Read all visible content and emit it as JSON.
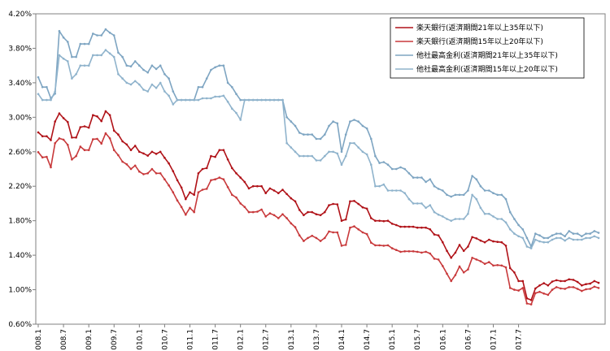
{
  "chart_data": {
    "type": "line",
    "title": "",
    "xlabel": "",
    "ylabel": "",
    "ylim": [
      0.6,
      4.2
    ],
    "yticks": [
      "0.60%",
      "1.00%",
      "1.40%",
      "1.80%",
      "2.20%",
      "2.60%",
      "3.00%",
      "3.40%",
      "3.80%",
      "4.20%"
    ],
    "xticks": [
      "008.1",
      "008.7",
      "009.1",
      "009.7",
      "010.1",
      "010.7",
      "011.1",
      "011.7",
      "012.1",
      "012.7",
      "013.1",
      "013.7",
      "014.1",
      "014.7",
      "015.1",
      "015.7",
      "016.1",
      "016.7",
      "017.1",
      "017.7"
    ],
    "legend_position": "top-right",
    "grid": false,
    "series": [
      {
        "name": "楽天銀行(返済期間21年以上35年以下)",
        "color": "#b01218",
        "values": [
          2.825,
          2.78,
          2.78,
          2.735,
          2.95,
          3.045,
          2.99,
          2.945,
          2.765,
          2.765,
          2.885,
          2.895,
          2.88,
          3.025,
          3.01,
          2.955,
          3.07,
          3.025,
          2.845,
          2.8,
          2.72,
          2.685,
          2.62,
          2.67,
          2.6,
          2.58,
          2.555,
          2.6,
          2.575,
          2.6,
          2.53,
          2.465,
          2.375,
          2.27,
          2.185,
          2.05,
          2.13,
          2.1,
          2.35,
          2.4,
          2.41,
          2.55,
          2.54,
          2.62,
          2.62,
          2.51,
          2.41,
          2.35,
          2.3,
          2.25,
          2.175,
          2.2,
          2.2,
          2.2,
          2.12,
          2.175,
          2.15,
          2.12,
          2.16,
          2.11,
          2.06,
          2.025,
          1.925,
          1.865,
          1.9,
          1.9,
          1.875,
          1.865,
          1.9,
          1.98,
          1.995,
          1.99,
          1.8,
          1.815,
          2.025,
          2.03,
          1.995,
          1.955,
          1.94,
          1.83,
          1.8,
          1.8,
          1.795,
          1.8,
          1.765,
          1.75,
          1.73,
          1.73,
          1.73,
          1.73,
          1.72,
          1.72,
          1.72,
          1.7,
          1.64,
          1.63,
          1.55,
          1.45,
          1.37,
          1.43,
          1.52,
          1.45,
          1.5,
          1.61,
          1.595,
          1.57,
          1.55,
          1.58,
          1.56,
          1.555,
          1.55,
          1.51,
          1.25,
          1.2,
          1.1,
          1.1,
          0.9,
          0.88,
          1.015,
          1.05,
          1.075,
          1.05,
          1.095,
          1.11,
          1.1,
          1.1,
          1.12,
          1.115,
          1.09,
          1.05,
          1.065,
          1.07,
          1.1,
          1.08
        ]
      },
      {
        "name": "楽天銀行(返済期間15年以上20年以下)",
        "color": "#c8393b",
        "values": [
          2.595,
          2.535,
          2.54,
          2.42,
          2.7,
          2.755,
          2.74,
          2.68,
          2.51,
          2.55,
          2.66,
          2.62,
          2.62,
          2.745,
          2.75,
          2.695,
          2.815,
          2.755,
          2.62,
          2.56,
          2.485,
          2.455,
          2.4,
          2.44,
          2.37,
          2.34,
          2.35,
          2.4,
          2.35,
          2.35,
          2.28,
          2.21,
          2.13,
          2.035,
          1.96,
          1.87,
          1.95,
          1.9,
          2.13,
          2.16,
          2.17,
          2.27,
          2.28,
          2.3,
          2.28,
          2.19,
          2.1,
          2.07,
          2.0,
          1.96,
          1.9,
          1.9,
          1.905,
          1.93,
          1.85,
          1.885,
          1.865,
          1.83,
          1.875,
          1.83,
          1.77,
          1.725,
          1.63,
          1.565,
          1.6,
          1.625,
          1.6,
          1.565,
          1.6,
          1.675,
          1.665,
          1.665,
          1.51,
          1.52,
          1.72,
          1.735,
          1.7,
          1.665,
          1.645,
          1.545,
          1.515,
          1.515,
          1.51,
          1.515,
          1.48,
          1.46,
          1.44,
          1.445,
          1.445,
          1.445,
          1.44,
          1.43,
          1.44,
          1.42,
          1.36,
          1.35,
          1.275,
          1.185,
          1.1,
          1.17,
          1.27,
          1.2,
          1.235,
          1.37,
          1.35,
          1.33,
          1.3,
          1.32,
          1.28,
          1.285,
          1.28,
          1.26,
          1.02,
          1.0,
          0.99,
          1.02,
          0.84,
          0.83,
          0.96,
          0.975,
          0.955,
          0.94,
          1.0,
          1.03,
          1.015,
          1.01,
          1.03,
          1.03,
          1.01,
          0.985,
          1.005,
          1.01,
          1.035,
          1.02
        ]
      },
      {
        "name": "他社最高金利(返済期間21年以上35年以下)",
        "color": "#7ea5c2",
        "values": [
          3.465,
          3.35,
          3.35,
          3.22,
          3.275,
          4.0,
          3.925,
          3.875,
          3.7,
          3.7,
          3.85,
          3.85,
          3.85,
          3.97,
          3.95,
          3.95,
          4.02,
          3.98,
          3.95,
          3.75,
          3.7,
          3.6,
          3.59,
          3.65,
          3.6,
          3.55,
          3.52,
          3.6,
          3.56,
          3.6,
          3.5,
          3.45,
          3.3,
          3.2,
          3.2,
          3.2,
          3.2,
          3.2,
          3.35,
          3.35,
          3.45,
          3.55,
          3.58,
          3.6,
          3.6,
          3.4,
          3.35,
          3.27,
          3.2,
          3.2,
          3.2,
          3.2,
          3.2,
          3.2,
          3.2,
          3.2,
          3.2,
          3.2,
          3.2,
          3.0,
          2.95,
          2.9,
          2.82,
          2.8,
          2.8,
          2.8,
          2.75,
          2.75,
          2.8,
          2.9,
          2.95,
          2.93,
          2.6,
          2.8,
          2.95,
          2.97,
          2.95,
          2.9,
          2.87,
          2.75,
          2.55,
          2.47,
          2.48,
          2.45,
          2.4,
          2.4,
          2.42,
          2.4,
          2.35,
          2.3,
          2.3,
          2.3,
          2.25,
          2.28,
          2.2,
          2.17,
          2.15,
          2.1,
          2.08,
          2.1,
          2.1,
          2.1,
          2.15,
          2.32,
          2.28,
          2.2,
          2.15,
          2.15,
          2.12,
          2.1,
          2.1,
          2.05,
          1.9,
          1.82,
          1.75,
          1.7,
          1.6,
          1.5,
          1.65,
          1.63,
          1.6,
          1.6,
          1.63,
          1.65,
          1.65,
          1.62,
          1.68,
          1.65,
          1.65,
          1.62,
          1.65,
          1.65,
          1.68,
          1.66
        ]
      },
      {
        "name": "他社最高金利(返済期間15年以上20年以下)",
        "color": "#8fb3cc",
        "values": [
          3.27,
          3.2,
          3.2,
          3.2,
          3.3,
          3.72,
          3.68,
          3.65,
          3.45,
          3.5,
          3.6,
          3.6,
          3.6,
          3.72,
          3.72,
          3.72,
          3.78,
          3.74,
          3.7,
          3.5,
          3.45,
          3.4,
          3.38,
          3.42,
          3.38,
          3.32,
          3.3,
          3.38,
          3.34,
          3.4,
          3.3,
          3.25,
          3.15,
          3.2,
          3.2,
          3.2,
          3.2,
          3.2,
          3.2,
          3.22,
          3.22,
          3.22,
          3.24,
          3.24,
          3.25,
          3.18,
          3.1,
          3.05,
          2.97,
          3.2,
          3.2,
          3.2,
          3.2,
          3.2,
          3.2,
          3.2,
          3.2,
          3.2,
          3.2,
          2.7,
          2.65,
          2.6,
          2.55,
          2.55,
          2.55,
          2.55,
          2.5,
          2.5,
          2.55,
          2.6,
          2.6,
          2.58,
          2.45,
          2.55,
          2.7,
          2.7,
          2.65,
          2.6,
          2.57,
          2.45,
          2.2,
          2.2,
          2.22,
          2.15,
          2.15,
          2.15,
          2.15,
          2.12,
          2.05,
          2.0,
          2.0,
          2.0,
          1.95,
          1.98,
          1.9,
          1.87,
          1.85,
          1.82,
          1.8,
          1.82,
          1.82,
          1.82,
          1.88,
          2.1,
          2.05,
          1.95,
          1.88,
          1.88,
          1.85,
          1.82,
          1.82,
          1.78,
          1.7,
          1.65,
          1.62,
          1.6,
          1.5,
          1.48,
          1.58,
          1.56,
          1.55,
          1.55,
          1.58,
          1.6,
          1.6,
          1.57,
          1.6,
          1.58,
          1.58,
          1.58,
          1.6,
          1.6,
          1.62,
          1.6
        ]
      }
    ]
  }
}
